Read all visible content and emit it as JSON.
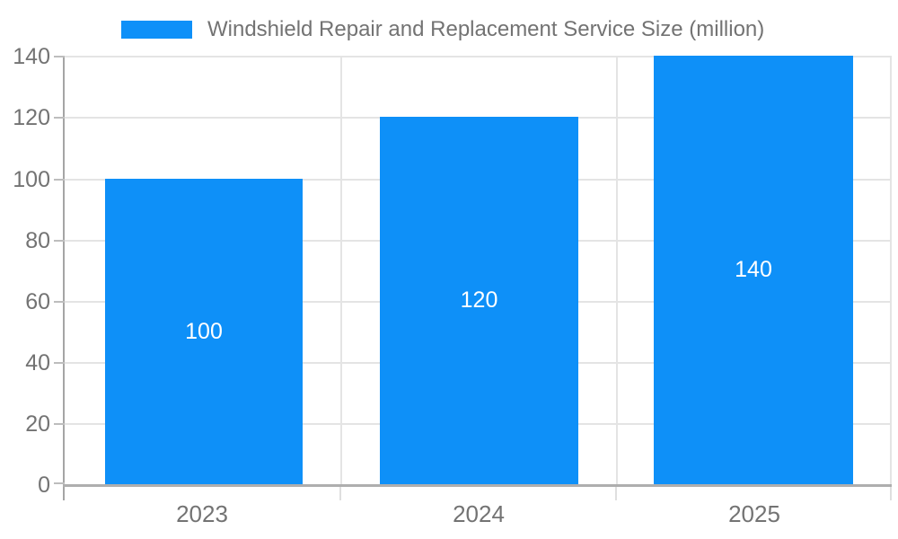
{
  "legend": {
    "label": "Windshield Repair and Replacement Service Size (million)",
    "swatch_color": "#0E90F8"
  },
  "chart_data": {
    "type": "bar",
    "title": "Windshield Repair and Replacement Service Size (million)",
    "categories": [
      "2023",
      "2024",
      "2025"
    ],
    "values": [
      100,
      120,
      140
    ],
    "series": [
      {
        "name": "Windshield Repair and Replacement Service Size (million)",
        "values": [
          100,
          120,
          140
        ]
      }
    ],
    "xlabel": "",
    "ylabel": "",
    "ylim": [
      0,
      140
    ],
    "ytick_step": 20,
    "y_tick_labels": [
      "140",
      "120",
      "100",
      "80",
      "60",
      "40",
      "20",
      "0"
    ],
    "grid": true,
    "legend_position": "top",
    "bar_color": "#0E90F8",
    "value_label_color": "#FFFFFF",
    "axis_text_color": "#737373",
    "grid_color": "#E4E4E4",
    "axis_line_color": "#AEAEAE"
  }
}
